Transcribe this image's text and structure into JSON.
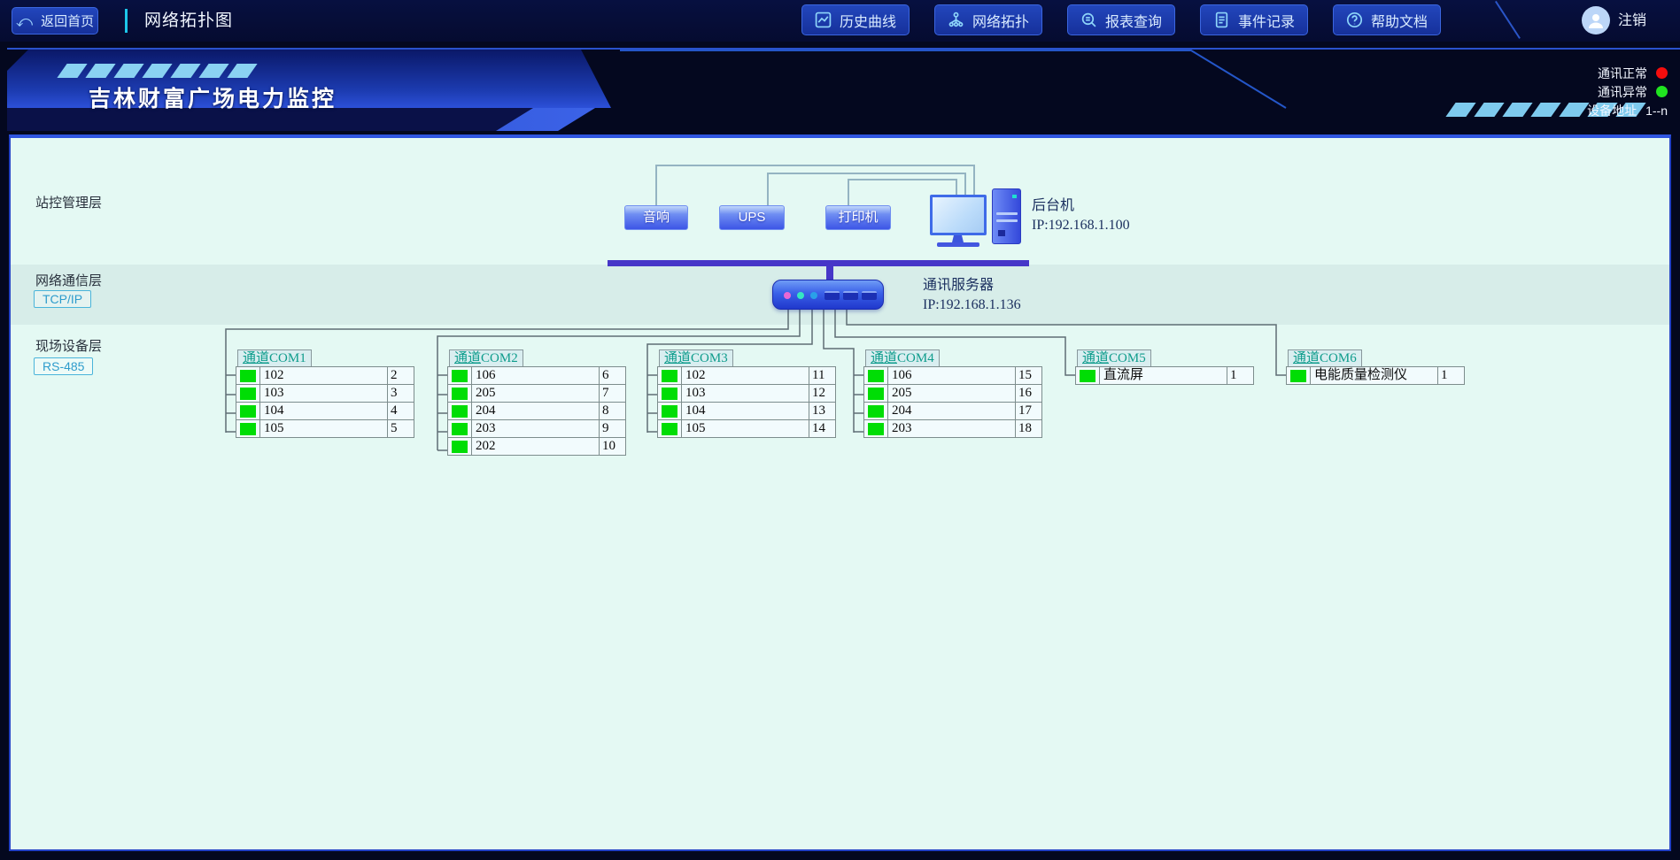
{
  "topbar": {
    "back_label": "返回首页",
    "page_title": "网络拓扑图",
    "buttons": [
      "历史曲线",
      "网络拓扑",
      "报表查询",
      "事件记录",
      "帮助文档"
    ],
    "logout_label": "注销"
  },
  "banner": {
    "title": "吉林财富广场电力监控",
    "legend": [
      {
        "label": "通讯正常",
        "dot_color": "#f50d0d"
      },
      {
        "label": "通讯异常",
        "dot_color": "#20e420"
      },
      {
        "label": "设备地址",
        "value": "1--n"
      }
    ]
  },
  "layers": [
    {
      "label": "站控管理层"
    },
    {
      "label": "网络通信层",
      "badge": "TCP/IP"
    },
    {
      "label": "现场设备层",
      "badge": "RS-485"
    }
  ],
  "station_devices": [
    "音响",
    "UPS",
    "打印机"
  ],
  "backend_host": {
    "label": "后台机",
    "ip": "IP:192.168.1.100"
  },
  "comm_server": {
    "label": "通讯服务器",
    "ip": "IP:192.168.1.136"
  },
  "channel_prefix": "通道",
  "channels": [
    {
      "id": "COM1",
      "devices": [
        {
          "name": "102",
          "addr": "2"
        },
        {
          "name": "103",
          "addr": "3"
        },
        {
          "name": "104",
          "addr": "4"
        },
        {
          "name": "105",
          "addr": "5"
        }
      ]
    },
    {
      "id": "COM2",
      "devices": [
        {
          "name": "106",
          "addr": "6"
        },
        {
          "name": "205",
          "addr": "7"
        },
        {
          "name": "204",
          "addr": "8"
        },
        {
          "name": "203",
          "addr": "9"
        },
        {
          "name": "202",
          "addr": "10"
        }
      ]
    },
    {
      "id": "COM3",
      "devices": [
        {
          "name": "102",
          "addr": "11"
        },
        {
          "name": "103",
          "addr": "12"
        },
        {
          "name": "104",
          "addr": "13"
        },
        {
          "name": "105",
          "addr": "14"
        }
      ]
    },
    {
      "id": "COM4",
      "devices": [
        {
          "name": "106",
          "addr": "15"
        },
        {
          "name": "205",
          "addr": "16"
        },
        {
          "name": "204",
          "addr": "17"
        },
        {
          "name": "203",
          "addr": "18"
        }
      ]
    },
    {
      "id": "COM5",
      "devices": [
        {
          "name": "直流屏",
          "addr": "1"
        }
      ]
    },
    {
      "id": "COM6",
      "devices": [
        {
          "name": "电能质量检测仪",
          "addr": "1"
        }
      ]
    }
  ],
  "status_led_color": "#00dd05",
  "bus_color": "#4636c8"
}
